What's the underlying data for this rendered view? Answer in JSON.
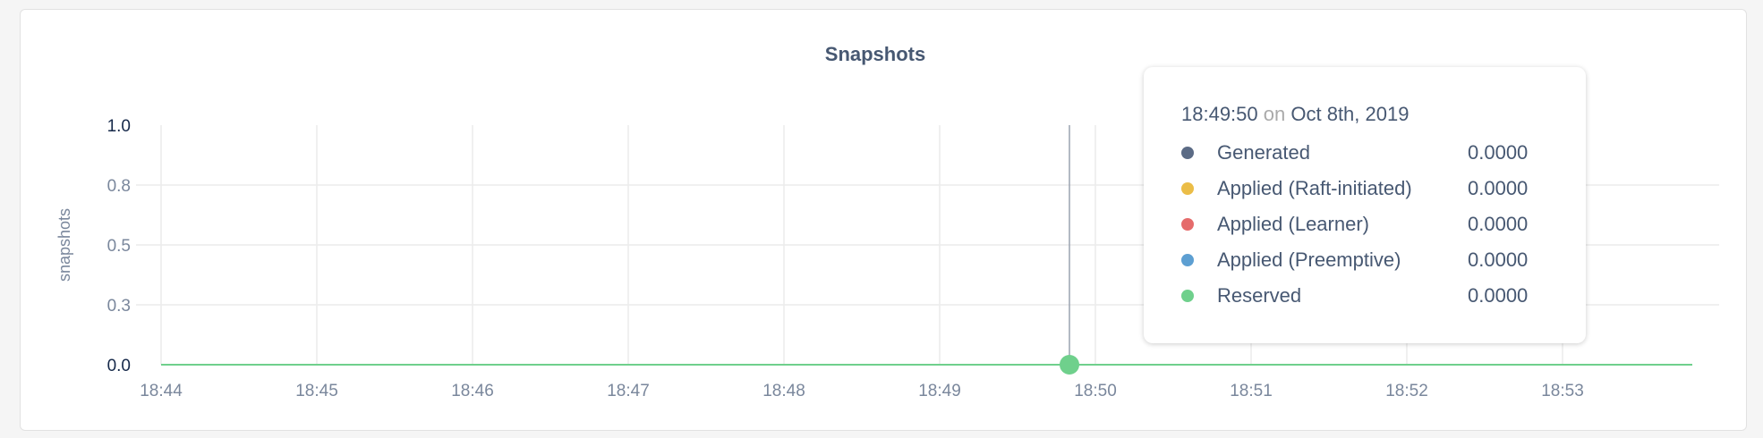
{
  "chart_data": {
    "type": "line",
    "title": "Snapshots",
    "ylabel": "snapshots",
    "xlabel": "",
    "ylim": [
      0,
      1
    ],
    "y_ticks": [
      {
        "value": 0,
        "label": "0.0"
      },
      {
        "value": 0.25,
        "label": "0.3"
      },
      {
        "value": 0.5,
        "label": "0.5"
      },
      {
        "value": 0.75,
        "label": "0.8"
      },
      {
        "value": 1,
        "label": "1.0"
      }
    ],
    "x_ticks": [
      "18:44",
      "18:45",
      "18:46",
      "18:47",
      "18:48",
      "18:49",
      "18:50",
      "18:51",
      "18:52",
      "18:53"
    ],
    "xlim": [
      "18:44",
      "18:53:50"
    ],
    "grid": true,
    "series": [
      {
        "name": "Generated",
        "color": "#5b6b85",
        "x": [
          "18:44",
          "18:53:50"
        ],
        "values": [
          0,
          0
        ]
      },
      {
        "name": "Applied (Raft-initiated)",
        "color": "#ebbd47",
        "x": [
          "18:44",
          "18:53:50"
        ],
        "values": [
          0,
          0
        ]
      },
      {
        "name": "Applied (Learner)",
        "color": "#e56b6b",
        "x": [
          "18:44",
          "18:53:50"
        ],
        "values": [
          0,
          0
        ]
      },
      {
        "name": "Applied (Preemptive)",
        "color": "#5d9fd2",
        "x": [
          "18:44",
          "18:53:50"
        ],
        "values": [
          0,
          0
        ]
      },
      {
        "name": "Reserved",
        "color": "#6fd08c",
        "x": [
          "18:44",
          "18:53:50"
        ],
        "values": [
          0,
          0
        ]
      }
    ],
    "hover": {
      "x": "18:49:50",
      "y": 0
    }
  },
  "tooltip": {
    "time": "18:49:50",
    "on": "on",
    "date": "Oct 8th, 2019",
    "rows": [
      {
        "label": "Generated",
        "value": "0.0000",
        "color": "#5b6b85"
      },
      {
        "label": "Applied (Raft-initiated)",
        "value": "0.0000",
        "color": "#ebbd47"
      },
      {
        "label": "Applied (Learner)",
        "value": "0.0000",
        "color": "#e56b6b"
      },
      {
        "label": "Applied (Preemptive)",
        "value": "0.0000",
        "color": "#5d9fd2"
      },
      {
        "label": "Reserved",
        "value": "0.0000",
        "color": "#6fd08c"
      }
    ]
  }
}
